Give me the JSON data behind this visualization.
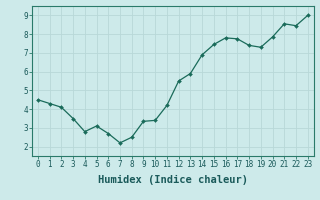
{
  "x": [
    0,
    1,
    2,
    3,
    4,
    5,
    6,
    7,
    8,
    9,
    10,
    11,
    12,
    13,
    14,
    15,
    16,
    17,
    18,
    19,
    20,
    21,
    22,
    23
  ],
  "y": [
    4.5,
    4.3,
    4.1,
    3.5,
    2.8,
    3.1,
    2.7,
    2.2,
    2.5,
    3.35,
    3.4,
    4.2,
    5.5,
    5.9,
    6.9,
    7.45,
    7.8,
    7.75,
    7.4,
    7.3,
    7.85,
    8.55,
    8.45,
    9.0
  ],
  "line_color": "#1a6b5a",
  "marker": "D",
  "marker_size": 2.0,
  "bg_color": "#cdeaea",
  "grid_color": "#b8d8d8",
  "xlabel": "Humidex (Indice chaleur)",
  "ylim": [
    1.5,
    9.5
  ],
  "xlim": [
    -0.5,
    23.5
  ],
  "yticks": [
    2,
    3,
    4,
    5,
    6,
    7,
    8,
    9
  ],
  "xticks": [
    0,
    1,
    2,
    3,
    4,
    5,
    6,
    7,
    8,
    9,
    10,
    11,
    12,
    13,
    14,
    15,
    16,
    17,
    18,
    19,
    20,
    21,
    22,
    23
  ],
  "tick_fontsize": 5.5,
  "xlabel_fontsize": 7.5,
  "linewidth": 0.9
}
